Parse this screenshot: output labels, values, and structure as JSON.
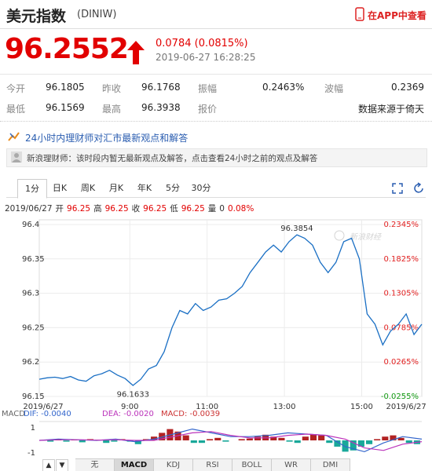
{
  "header": {
    "title": "美元指数",
    "code": "(DINIW)",
    "app_link": "在APP中查看"
  },
  "quote": {
    "price": "96.2552",
    "change": "0.0784 (0.0815%)",
    "time": "2019-06-27 16:28:25"
  },
  "stats": {
    "rows": [
      [
        {
          "label": "今开",
          "value": "96.1805"
        },
        {
          "label": "昨收",
          "value": "96.1768"
        },
        {
          "label": "振幅",
          "value": "0.2463%"
        },
        {
          "label": "波幅",
          "value": "0.2369"
        }
      ],
      [
        {
          "label": "最低",
          "value": "96.1569"
        },
        {
          "label": "最高",
          "value": "96.3938"
        },
        {
          "label": "报价"
        },
        {
          "value": "数据来源于倚天"
        }
      ]
    ]
  },
  "news": {
    "banner": "24小时内理财师对汇市最新观点和解答",
    "message": "新浪理财师：该时段内暂无最新观点及解答，点击查看24小时之前的观点及解答"
  },
  "chart_tabs": {
    "items": [
      "1分",
      "日K",
      "周K",
      "月K",
      "年K",
      "5分",
      "30分"
    ],
    "selected": 0
  },
  "info": {
    "date": "2019/06/27",
    "items": [
      {
        "label": "开",
        "value": "96.25"
      },
      {
        "label": "高",
        "value": "96.25"
      },
      {
        "label": "收",
        "value": "96.25"
      },
      {
        "label": "低",
        "value": "96.25"
      },
      {
        "label": "量",
        "value": "0"
      }
    ],
    "change": "0.08%"
  },
  "chart_data": [
    {
      "type": "line",
      "color": "#1a6fc4",
      "grid": true,
      "watermark": "新浪财经",
      "values": [
        96.175,
        96.177,
        96.178,
        96.176,
        96.179,
        96.174,
        96.172,
        96.18,
        96.183,
        96.188,
        96.181,
        96.176,
        96.166,
        96.175,
        96.19,
        96.195,
        96.215,
        96.25,
        96.275,
        96.27,
        96.285,
        96.275,
        96.28,
        96.29,
        96.292,
        96.3,
        96.31,
        96.33,
        96.345,
        96.36,
        96.37,
        96.36,
        96.375,
        96.385,
        96.38,
        96.37,
        96.345,
        96.33,
        96.345,
        96.375,
        96.38,
        96.35,
        96.27,
        96.255,
        96.225,
        96.245,
        96.255,
        96.27,
        96.24,
        96.255
      ],
      "ylim": [
        96.15,
        96.4
      ],
      "yticks": [
        96.4,
        96.35,
        96.3,
        96.25,
        96.2,
        96.15
      ],
      "y2lim": [
        -0.0255,
        0.2345
      ],
      "y2ticks": [
        {
          "value": 0.2345,
          "label": "0.2345%"
        },
        {
          "value": 0.1825,
          "label": "0.1825%"
        },
        {
          "value": 0.1305,
          "label": "0.1305%"
        },
        {
          "value": 0.0785,
          "label": "0.0785%"
        },
        {
          "value": 0.0265,
          "label": "0.0265%"
        },
        {
          "value": -0.0255,
          "label": "-0.0255%"
        }
      ],
      "xlim": [
        0,
        49
      ],
      "xticks": [
        {
          "value": 0.5,
          "label": "2019/6/27"
        },
        {
          "value": 11.6,
          "label": "9:00"
        },
        {
          "value": 21.5,
          "label": "11:00"
        },
        {
          "value": 31.4,
          "label": "13:00"
        },
        {
          "value": 41.3,
          "label": "15:00"
        },
        {
          "value": 47,
          "label": "2019/6/27"
        }
      ],
      "annotations": [
        {
          "value": 96.3854,
          "label": "96.3854"
        },
        {
          "value": 96.1633,
          "label": "96.1633"
        }
      ]
    },
    {
      "type": "macd",
      "legend": [
        {
          "text": "MACD",
          "color": "#666666"
        },
        {
          "text": "DIF: -0.0040",
          "color": "#3366cc"
        },
        {
          "text": "DEA: -0.0020",
          "color": "#bb33bb"
        },
        {
          "text": "MACD: -0.0039",
          "color": "#cc3333"
        }
      ],
      "values": [
        0,
        -0.1,
        0.1,
        -0.1,
        0.05,
        -0.15,
        0.1,
        0.05,
        -0.2,
        -0.1,
        0.1,
        -0.1,
        -0.3,
        0.1,
        0.3,
        0.6,
        0.9,
        0.7,
        0.4,
        -0.2,
        -0.2,
        0.1,
        0.2,
        -0.1,
        0,
        0.1,
        0.15,
        0.3,
        0.45,
        0.3,
        0.2,
        -0.1,
        -0.2,
        0.3,
        0.5,
        0.4,
        -0.2,
        -0.5,
        -0.9,
        -0.8,
        -0.5,
        -0.3,
        0.1,
        0.3,
        0.4,
        0.2,
        -0.2,
        -0.3
      ],
      "up_color": "#b22222",
      "down_color": "#19a89a",
      "series": [
        {
          "color": "#3366cc",
          "values": [
            0,
            0.1,
            0.05,
            0,
            0.1,
            -0.1,
            0.1,
            0.5,
            0.9,
            0.6,
            0.3,
            0.3,
            0.4,
            0.6,
            0.5,
            0.4,
            -0.5,
            -0.9,
            -0.2,
            0.3,
            0.1
          ]
        },
        {
          "color": "#bb33bb",
          "values": [
            0,
            0.05,
            0.05,
            0.02,
            0.05,
            0,
            0,
            0.3,
            0.6,
            0.7,
            0.4,
            0.2,
            0.2,
            0.4,
            0.5,
            0.4,
            0.1,
            -0.6,
            -0.8,
            -0.3,
            -0.1
          ]
        }
      ],
      "ylim": [
        -1.5,
        1.5
      ],
      "yticks": [
        1,
        -1
      ]
    }
  ],
  "indicator_tabs": {
    "arrows": [
      "▲",
      "▼"
    ],
    "items": [
      "无",
      "MACD",
      "KDJ",
      "RSI",
      "BOLL",
      "WR",
      "DMI"
    ],
    "selected": 1
  }
}
